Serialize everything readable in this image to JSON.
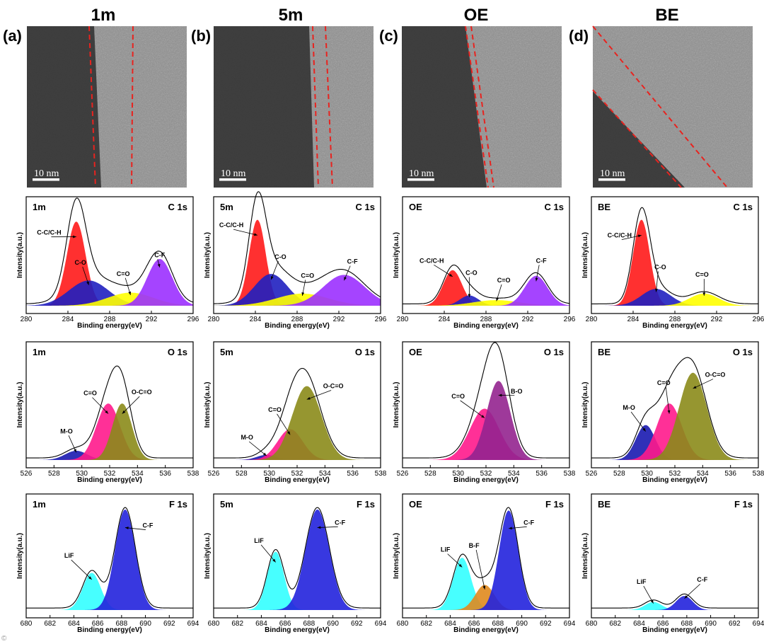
{
  "columns": [
    {
      "title": "1m",
      "label": "(a)",
      "scale": "10 nm"
    },
    {
      "title": "5m",
      "label": "(b)",
      "scale": "10 nm"
    },
    {
      "title": "OE",
      "label": "(c)",
      "scale": "10 nm"
    },
    {
      "title": "BE",
      "label": "(d)",
      "scale": "10 nm"
    }
  ],
  "watermark": "©",
  "chart_data": [
    {
      "id": "1m-C1s",
      "type": "area",
      "sample": "1m",
      "region": "C 1s",
      "xlabel": "Binding energy(eV)",
      "ylabel": "Intensity(a.u.)",
      "xlim": [
        280,
        296
      ],
      "xticks": [
        280,
        284,
        288,
        292,
        296
      ],
      "peaks": [
        {
          "name": "C-C/C-H",
          "center": 284.8,
          "height": 0.9,
          "width": 0.9,
          "color": "#ff1a1a"
        },
        {
          "name": "C-O",
          "center": 286.0,
          "height": 0.27,
          "width": 1.9,
          "color": "#2020c0"
        },
        {
          "name": "C=O",
          "center": 290.0,
          "height": 0.14,
          "width": 2.2,
          "color": "#ffff00"
        },
        {
          "name": "C-F",
          "center": 292.8,
          "height": 0.5,
          "width": 1.2,
          "color": "#9b30ff"
        }
      ],
      "annotations": [
        {
          "text": "C-C/C-H",
          "x": 282.2,
          "y": 0.76
        },
        {
          "text": "C-O",
          "x": 285.2,
          "y": 0.44
        },
        {
          "text": "C=O",
          "x": 289.3,
          "y": 0.32
        },
        {
          "text": "C-F",
          "x": 292.8,
          "y": 0.52
        }
      ]
    },
    {
      "id": "5m-C1s",
      "type": "area",
      "sample": "5m",
      "region": "C 1s",
      "xlabel": "Binding energy(eV)",
      "ylabel": "Intensity(a.u.)",
      "xlim": [
        280,
        296
      ],
      "xticks": [
        280,
        284,
        288,
        292,
        296
      ],
      "peaks": [
        {
          "name": "C-C/C-H",
          "center": 284.2,
          "height": 0.92,
          "width": 0.8,
          "color": "#ff1a1a"
        },
        {
          "name": "C-O",
          "center": 285.5,
          "height": 0.34,
          "width": 1.6,
          "color": "#2020c0"
        },
        {
          "name": "C=O",
          "center": 288.5,
          "height": 0.13,
          "width": 2.5,
          "color": "#ffff00"
        },
        {
          "name": "C-F",
          "center": 292.5,
          "height": 0.33,
          "width": 2.0,
          "color": "#9b30ff"
        }
      ],
      "annotations": [
        {
          "text": "C-C/C-H",
          "x": 281.7,
          "y": 0.84
        },
        {
          "text": "C-O",
          "x": 286.4,
          "y": 0.5
        },
        {
          "text": "C=O",
          "x": 289.0,
          "y": 0.3
        },
        {
          "text": "C-F",
          "x": 293.3,
          "y": 0.45
        }
      ]
    },
    {
      "id": "OE-C1s",
      "type": "area",
      "sample": "OE",
      "region": "C 1s",
      "xlabel": "Binding energy(eV)",
      "ylabel": "Intensity(a.u.)",
      "xlim": [
        280,
        296
      ],
      "xticks": [
        280,
        284,
        288,
        292,
        296
      ],
      "peaks": [
        {
          "name": "C-C/C-H",
          "center": 284.8,
          "height": 0.38,
          "width": 0.9,
          "color": "#ff1a1a"
        },
        {
          "name": "C-O",
          "center": 286.4,
          "height": 0.11,
          "width": 0.9,
          "color": "#2020c0"
        },
        {
          "name": "C=O",
          "center": 289.0,
          "height": 0.06,
          "width": 2.2,
          "color": "#ffff00"
        },
        {
          "name": "C-F",
          "center": 292.8,
          "height": 0.32,
          "width": 1.1,
          "color": "#9b30ff"
        }
      ],
      "annotations": [
        {
          "text": "C-C/C-H",
          "x": 282.8,
          "y": 0.46
        },
        {
          "text": "C-O",
          "x": 286.6,
          "y": 0.33
        },
        {
          "text": "C=O",
          "x": 289.7,
          "y": 0.25
        },
        {
          "text": "C-F",
          "x": 293.3,
          "y": 0.46
        }
      ]
    },
    {
      "id": "BE-C1s",
      "type": "area",
      "sample": "BE",
      "region": "C 1s",
      "xlabel": "Binding energy(eV)",
      "ylabel": "Intensity(a.u.)",
      "xlim": [
        280,
        296
      ],
      "xticks": [
        280,
        284,
        288,
        292,
        296
      ],
      "peaks": [
        {
          "name": "C-C/C-H",
          "center": 284.8,
          "height": 0.92,
          "width": 0.8,
          "color": "#ff1a1a"
        },
        {
          "name": "C-O",
          "center": 286.2,
          "height": 0.18,
          "width": 1.4,
          "color": "#2020c0"
        },
        {
          "name": "C=O",
          "center": 290.8,
          "height": 0.13,
          "width": 1.4,
          "color": "#ffff00"
        }
      ],
      "annotations": [
        {
          "text": "C-C/C-H",
          "x": 282.7,
          "y": 0.73
        },
        {
          "text": "C-O",
          "x": 286.6,
          "y": 0.39
        },
        {
          "text": "C=O",
          "x": 290.6,
          "y": 0.31
        }
      ]
    },
    {
      "id": "1m-O1s",
      "type": "area",
      "sample": "1m",
      "region": "O 1s",
      "xlabel": "Binding energy(eV)",
      "ylabel": "Intensity(a.u.)",
      "xlim": [
        526,
        538
      ],
      "xticks": [
        526,
        528,
        530,
        532,
        534,
        536,
        538
      ],
      "peaks": [
        {
          "name": "M-O",
          "center": 529.6,
          "height": 0.09,
          "width": 0.8,
          "color": "#1a1ab0"
        },
        {
          "name": "C=O",
          "center": 531.9,
          "height": 0.55,
          "width": 0.85,
          "color": "#ff1a8c"
        },
        {
          "name": "O-C=O",
          "center": 532.9,
          "height": 0.55,
          "width": 0.7,
          "color": "#8b8b1a"
        }
      ],
      "annotations": [
        {
          "text": "M-O",
          "x": 528.9,
          "y": 0.26
        },
        {
          "text": "C=O",
          "x": 530.6,
          "y": 0.63
        },
        {
          "text": "O-C=O",
          "x": 534.3,
          "y": 0.64
        }
      ]
    },
    {
      "id": "5m-O1s",
      "type": "area",
      "sample": "5m",
      "region": "O 1s",
      "xlabel": "Binding energy(eV)",
      "ylabel": "Intensity(a.u.)",
      "xlim": [
        526,
        538
      ],
      "xticks": [
        526,
        528,
        530,
        532,
        534,
        536,
        538
      ],
      "peaks": [
        {
          "name": "M-O",
          "center": 529.8,
          "height": 0.05,
          "width": 0.7,
          "color": "#1a1ab0"
        },
        {
          "name": "C=O",
          "center": 531.5,
          "height": 0.3,
          "width": 0.9,
          "color": "#ff1a8c"
        },
        {
          "name": "O-C=O",
          "center": 532.7,
          "height": 0.72,
          "width": 1.05,
          "color": "#8b8b1a"
        }
      ],
      "annotations": [
        {
          "text": "M-O",
          "x": 528.4,
          "y": 0.2
        },
        {
          "text": "C=O",
          "x": 530.4,
          "y": 0.47
        },
        {
          "text": "O-C=O",
          "x": 534.6,
          "y": 0.7
        }
      ]
    },
    {
      "id": "OE-O1s",
      "type": "area",
      "sample": "OE",
      "region": "O 1s",
      "xlabel": "Binding energy(eV)",
      "ylabel": "Intensity(a.u.)",
      "xlim": [
        526,
        538
      ],
      "xticks": [
        526,
        528,
        530,
        532,
        534,
        536,
        538
      ],
      "peaks": [
        {
          "name": "C=O",
          "center": 531.9,
          "height": 0.5,
          "width": 1.05,
          "color": "#ff1a8c"
        },
        {
          "name": "B-O",
          "center": 532.9,
          "height": 0.77,
          "width": 0.85,
          "color": "#93248f"
        }
      ],
      "annotations": [
        {
          "text": "C=O",
          "x": 530.0,
          "y": 0.6
        },
        {
          "text": "B-O",
          "x": 534.2,
          "y": 0.65
        }
      ]
    },
    {
      "id": "BE-O1s",
      "type": "area",
      "sample": "BE",
      "region": "O 1s",
      "xlabel": "Binding energy(eV)",
      "ylabel": "Intensity(a.u.)",
      "xlim": [
        526,
        538
      ],
      "xticks": [
        526,
        528,
        530,
        532,
        534,
        536,
        538
      ],
      "peaks": [
        {
          "name": "M-O",
          "center": 529.9,
          "height": 0.34,
          "width": 0.7,
          "color": "#1a1ab0"
        },
        {
          "name": "C=O",
          "center": 531.6,
          "height": 0.55,
          "width": 0.9,
          "color": "#ff1a8c"
        },
        {
          "name": "O-C=O",
          "center": 533.3,
          "height": 0.85,
          "width": 1.0,
          "color": "#8b8b1a"
        }
      ],
      "annotations": [
        {
          "text": "M-O",
          "x": 528.7,
          "y": 0.49
        },
        {
          "text": "C=O",
          "x": 531.2,
          "y": 0.73
        },
        {
          "text": "O-C=O",
          "x": 534.9,
          "y": 0.81
        }
      ]
    },
    {
      "id": "1m-F1s",
      "type": "area",
      "sample": "1m",
      "region": "F 1s",
      "xlabel": "Binding energy(eV)",
      "ylabel": "Intensity(a.u.)",
      "xlim": [
        680,
        694
      ],
      "xticks": [
        680,
        682,
        684,
        686,
        688,
        690,
        692,
        694
      ],
      "peaks": [
        {
          "name": "LiF",
          "center": 685.5,
          "height": 0.37,
          "width": 0.75,
          "color": "#33ffff"
        },
        {
          "name": "C-F",
          "center": 688.3,
          "height": 1.0,
          "width": 0.85,
          "color": "#2222dd"
        }
      ],
      "annotations": [
        {
          "text": "LiF",
          "x": 683.6,
          "y": 0.52
        },
        {
          "text": "C-F",
          "x": 690.2,
          "y": 0.82
        }
      ]
    },
    {
      "id": "5m-F1s",
      "type": "area",
      "sample": "5m",
      "region": "F 1s",
      "xlabel": "Binding energy(eV)",
      "ylabel": "Intensity(a.u.)",
      "xlim": [
        680,
        694
      ],
      "xticks": [
        680,
        682,
        684,
        686,
        688,
        690,
        692,
        694
      ],
      "peaks": [
        {
          "name": "LiF",
          "center": 685.2,
          "height": 0.58,
          "width": 0.7,
          "color": "#33ffff"
        },
        {
          "name": "C-F",
          "center": 688.7,
          "height": 1.0,
          "width": 1.0,
          "color": "#2222dd"
        }
      ],
      "annotations": [
        {
          "text": "LiF",
          "x": 683.8,
          "y": 0.67
        },
        {
          "text": "C-F",
          "x": 690.6,
          "y": 0.85
        }
      ]
    },
    {
      "id": "OE-F1s",
      "type": "area",
      "sample": "OE",
      "region": "F 1s",
      "xlabel": "Binding energy(eV)",
      "ylabel": "Intensity(a.u.)",
      "xlim": [
        680,
        694
      ],
      "xticks": [
        680,
        682,
        684,
        686,
        688,
        690,
        692,
        694
      ],
      "peaks": [
        {
          "name": "LiF",
          "center": 685.0,
          "height": 0.52,
          "width": 0.75,
          "color": "#33ffff"
        },
        {
          "name": "B-F",
          "center": 686.9,
          "height": 0.25,
          "width": 0.8,
          "color": "#e08a1e"
        },
        {
          "name": "C-F",
          "center": 688.9,
          "height": 0.99,
          "width": 0.8,
          "color": "#2222dd"
        }
      ],
      "annotations": [
        {
          "text": "LiF",
          "x": 683.6,
          "y": 0.58
        },
        {
          "text": "B-F",
          "x": 686.0,
          "y": 0.62
        },
        {
          "text": "C-F",
          "x": 690.6,
          "y": 0.85
        }
      ]
    },
    {
      "id": "BE-F1s",
      "type": "area",
      "sample": "BE",
      "region": "F 1s",
      "xlabel": "Binding energy(eV)",
      "ylabel": "Intensity(a.u.)",
      "xlim": [
        680,
        694
      ],
      "xticks": [
        680,
        682,
        684,
        686,
        688,
        690,
        692,
        694
      ],
      "peaks": [
        {
          "name": "LiF",
          "center": 685.2,
          "height": 0.08,
          "width": 0.7,
          "color": "#33ffff"
        },
        {
          "name": "C-F",
          "center": 687.8,
          "height": 0.14,
          "width": 0.7,
          "color": "#2222dd"
        }
      ],
      "annotations": [
        {
          "text": "LiF",
          "x": 684.2,
          "y": 0.26
        },
        {
          "text": "C-F",
          "x": 689.3,
          "y": 0.28
        }
      ]
    }
  ]
}
